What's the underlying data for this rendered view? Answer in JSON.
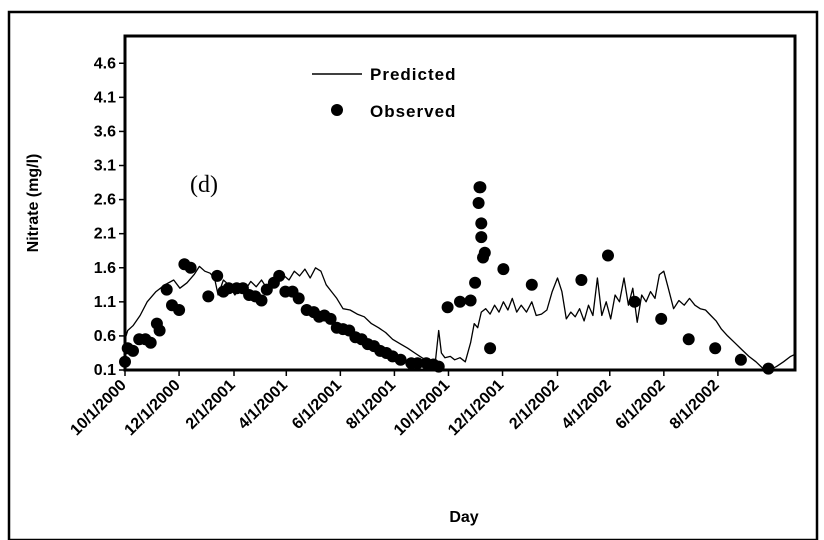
{
  "chart_data": {
    "type": "line",
    "title": "",
    "panel_label": "(d)",
    "xlabel": "Day",
    "ylabel": "Nitrate (mg/l)",
    "ylim": [
      0.1,
      5.0
    ],
    "yticks": [
      0.1,
      0.6,
      1.1,
      1.6,
      2.1,
      2.6,
      3.1,
      3.6,
      4.1,
      4.6
    ],
    "xlim": [
      "2000-10-01",
      "2002-10-27"
    ],
    "xticks": [
      {
        "label": "10/1/2000",
        "date": "2000-10-01"
      },
      {
        "label": "12/1/2000",
        "date": "2000-12-01"
      },
      {
        "label": "2/1/2001",
        "date": "2001-02-01"
      },
      {
        "label": "4/1/2001",
        "date": "2001-04-01"
      },
      {
        "label": "6/1/2001",
        "date": "2001-06-01"
      },
      {
        "label": "8/1/2001",
        "date": "2001-08-01"
      },
      {
        "label": "10/1/2001",
        "date": "2001-10-01"
      },
      {
        "label": "12/1/2001",
        "date": "2001-12-01"
      },
      {
        "label": "2/1/2002",
        "date": "2002-02-01"
      },
      {
        "label": "4/1/2002",
        "date": "2002-04-01"
      },
      {
        "label": "6/1/2002",
        "date": "2002-06-01"
      },
      {
        "label": "8/1/2002",
        "date": "2002-08-01"
      }
    ],
    "legend_position": "top-center",
    "grid": false,
    "series": [
      {
        "name": "Predicted",
        "kind": "line",
        "color": "#000000",
        "points": [
          [
            "2000-10-01",
            0.55
          ],
          [
            "2000-10-04",
            0.68
          ],
          [
            "2000-10-10",
            0.75
          ],
          [
            "2000-10-18",
            0.9
          ],
          [
            "2000-10-26",
            1.1
          ],
          [
            "2000-11-05",
            1.25
          ],
          [
            "2000-11-15",
            1.35
          ],
          [
            "2000-11-25",
            1.42
          ],
          [
            "2000-12-02",
            1.3
          ],
          [
            "2000-12-10",
            1.38
          ],
          [
            "2000-12-18",
            1.5
          ],
          [
            "2000-12-24",
            1.62
          ],
          [
            "2000-12-30",
            1.55
          ],
          [
            "2001-01-05",
            1.52
          ],
          [
            "2001-01-10",
            1.45
          ],
          [
            "2001-01-14",
            1.2
          ],
          [
            "2001-01-20",
            1.42
          ],
          [
            "2001-01-26",
            1.35
          ],
          [
            "2001-02-02",
            1.2
          ],
          [
            "2001-02-08",
            1.32
          ],
          [
            "2001-02-14",
            1.28
          ],
          [
            "2001-02-20",
            1.4
          ],
          [
            "2001-02-26",
            1.32
          ],
          [
            "2001-03-04",
            1.42
          ],
          [
            "2001-03-10",
            1.3
          ],
          [
            "2001-03-16",
            1.45
          ],
          [
            "2001-03-22",
            1.38
          ],
          [
            "2001-03-28",
            1.5
          ],
          [
            "2001-04-04",
            1.42
          ],
          [
            "2001-04-10",
            1.55
          ],
          [
            "2001-04-16",
            1.48
          ],
          [
            "2001-04-22",
            1.58
          ],
          [
            "2001-04-28",
            1.45
          ],
          [
            "2001-05-04",
            1.6
          ],
          [
            "2001-05-10",
            1.55
          ],
          [
            "2001-05-16",
            1.35
          ],
          [
            "2001-05-22",
            1.25
          ],
          [
            "2001-05-28",
            1.15
          ],
          [
            "2001-06-04",
            1.0
          ],
          [
            "2001-06-12",
            0.98
          ],
          [
            "2001-06-20",
            0.92
          ],
          [
            "2001-06-28",
            0.88
          ],
          [
            "2001-07-06",
            0.78
          ],
          [
            "2001-07-14",
            0.72
          ],
          [
            "2001-07-22",
            0.65
          ],
          [
            "2001-07-30",
            0.55
          ],
          [
            "2001-08-08",
            0.48
          ],
          [
            "2001-08-16",
            0.42
          ],
          [
            "2001-08-24",
            0.35
          ],
          [
            "2001-09-01",
            0.28
          ],
          [
            "2001-09-10",
            0.22
          ],
          [
            "2001-09-16",
            0.2
          ],
          [
            "2001-09-20",
            0.68
          ],
          [
            "2001-09-23",
            0.35
          ],
          [
            "2001-09-27",
            0.28
          ],
          [
            "2001-10-03",
            0.3
          ],
          [
            "2001-10-08",
            0.25
          ],
          [
            "2001-10-14",
            0.28
          ],
          [
            "2001-10-20",
            0.22
          ],
          [
            "2001-10-26",
            0.5
          ],
          [
            "2001-10-30",
            0.78
          ],
          [
            "2001-11-03",
            0.72
          ],
          [
            "2001-11-07",
            0.95
          ],
          [
            "2001-11-12",
            1.0
          ],
          [
            "2001-11-17",
            0.92
          ],
          [
            "2001-11-22",
            1.05
          ],
          [
            "2001-11-27",
            0.95
          ],
          [
            "2001-12-02",
            1.1
          ],
          [
            "2001-12-07",
            0.98
          ],
          [
            "2001-12-12",
            1.15
          ],
          [
            "2001-12-17",
            0.95
          ],
          [
            "2001-12-22",
            1.05
          ],
          [
            "2001-12-28",
            0.95
          ],
          [
            "2002-01-03",
            1.1
          ],
          [
            "2002-01-08",
            0.9
          ],
          [
            "2002-01-14",
            0.92
          ],
          [
            "2002-01-20",
            0.98
          ],
          [
            "2002-01-26",
            1.25
          ],
          [
            "2002-02-01",
            1.45
          ],
          [
            "2002-02-06",
            1.25
          ],
          [
            "2002-02-11",
            0.85
          ],
          [
            "2002-02-16",
            0.95
          ],
          [
            "2002-02-21",
            0.88
          ],
          [
            "2002-02-26",
            1.0
          ],
          [
            "2002-03-03",
            0.82
          ],
          [
            "2002-03-08",
            1.05
          ],
          [
            "2002-03-13",
            0.9
          ],
          [
            "2002-03-18",
            1.45
          ],
          [
            "2002-03-23",
            0.9
          ],
          [
            "2002-03-28",
            1.1
          ],
          [
            "2002-04-02",
            0.85
          ],
          [
            "2002-04-07",
            1.2
          ],
          [
            "2002-04-12",
            1.1
          ],
          [
            "2002-04-17",
            1.45
          ],
          [
            "2002-04-22",
            1.05
          ],
          [
            "2002-04-27",
            1.3
          ],
          [
            "2002-05-02",
            0.8
          ],
          [
            "2002-05-07",
            1.2
          ],
          [
            "2002-05-12",
            1.1
          ],
          [
            "2002-05-17",
            1.25
          ],
          [
            "2002-05-22",
            1.15
          ],
          [
            "2002-05-27",
            1.5
          ],
          [
            "2002-06-01",
            1.55
          ],
          [
            "2002-06-06",
            1.3
          ],
          [
            "2002-06-12",
            1.0
          ],
          [
            "2002-06-18",
            1.12
          ],
          [
            "2002-06-24",
            1.05
          ],
          [
            "2002-06-30",
            1.15
          ],
          [
            "2002-07-06",
            1.05
          ],
          [
            "2002-07-12",
            1.0
          ],
          [
            "2002-07-18",
            0.98
          ],
          [
            "2002-07-24",
            0.9
          ],
          [
            "2002-07-30",
            0.82
          ],
          [
            "2002-08-05",
            0.7
          ],
          [
            "2002-08-12",
            0.6
          ],
          [
            "2002-08-20",
            0.5
          ],
          [
            "2002-08-28",
            0.4
          ],
          [
            "2002-09-05",
            0.3
          ],
          [
            "2002-09-13",
            0.22
          ],
          [
            "2002-09-21",
            0.12
          ],
          [
            "2002-09-28",
            0.1
          ],
          [
            "2002-10-06",
            0.15
          ],
          [
            "2002-10-14",
            0.22
          ],
          [
            "2002-10-22",
            0.3
          ],
          [
            "2002-10-27",
            0.33
          ]
        ]
      },
      {
        "name": "Observed",
        "kind": "scatter",
        "color": "#000000",
        "points": [
          [
            "2000-10-01",
            0.22
          ],
          [
            "2000-10-04",
            0.42
          ],
          [
            "2000-10-10",
            0.38
          ],
          [
            "2000-10-17",
            0.55
          ],
          [
            "2000-10-24",
            0.55
          ],
          [
            "2000-10-30",
            0.5
          ],
          [
            "2000-11-06",
            0.78
          ],
          [
            "2000-11-09",
            0.68
          ],
          [
            "2000-11-17",
            1.28
          ],
          [
            "2000-11-23",
            1.05
          ],
          [
            "2000-12-01",
            0.98
          ],
          [
            "2000-12-07",
            1.65
          ],
          [
            "2000-12-14",
            1.6
          ],
          [
            "2001-01-03",
            1.18
          ],
          [
            "2001-01-13",
            1.48
          ],
          [
            "2001-01-20",
            1.25
          ],
          [
            "2001-01-26",
            1.3
          ],
          [
            "2001-02-04",
            1.3
          ],
          [
            "2001-02-11",
            1.3
          ],
          [
            "2001-02-18",
            1.2
          ],
          [
            "2001-02-25",
            1.18
          ],
          [
            "2001-03-04",
            1.12
          ],
          [
            "2001-03-10",
            1.28
          ],
          [
            "2001-03-18",
            1.38
          ],
          [
            "2001-03-24",
            1.48
          ],
          [
            "2001-03-31",
            1.25
          ],
          [
            "2001-04-08",
            1.25
          ],
          [
            "2001-04-15",
            1.15
          ],
          [
            "2001-04-24",
            0.98
          ],
          [
            "2001-05-02",
            0.95
          ],
          [
            "2001-05-08",
            0.88
          ],
          [
            "2001-05-14",
            0.9
          ],
          [
            "2001-05-21",
            0.85
          ],
          [
            "2001-05-28",
            0.72
          ],
          [
            "2001-06-04",
            0.7
          ],
          [
            "2001-06-11",
            0.68
          ],
          [
            "2001-06-18",
            0.58
          ],
          [
            "2001-06-25",
            0.55
          ],
          [
            "2001-07-02",
            0.48
          ],
          [
            "2001-07-09",
            0.45
          ],
          [
            "2001-07-16",
            0.38
          ],
          [
            "2001-07-23",
            0.35
          ],
          [
            "2001-07-30",
            0.3
          ],
          [
            "2001-08-08",
            0.25
          ],
          [
            "2001-08-20",
            0.2
          ],
          [
            "2001-08-27",
            0.2
          ],
          [
            "2001-09-06",
            0.2
          ],
          [
            "2001-09-14",
            0.18
          ],
          [
            "2001-09-20",
            0.15
          ],
          [
            "2001-09-30",
            1.02
          ],
          [
            "2001-10-14",
            1.1
          ],
          [
            "2001-10-26",
            1.12
          ],
          [
            "2001-10-31",
            1.38
          ],
          [
            "2001-11-04",
            2.55
          ],
          [
            "2001-11-05",
            2.78
          ],
          [
            "2001-11-06",
            2.78
          ],
          [
            "2001-11-07",
            2.25
          ],
          [
            "2001-11-07",
            2.05
          ],
          [
            "2001-11-09",
            1.75
          ],
          [
            "2001-11-11",
            1.82
          ],
          [
            "2001-11-17",
            0.42
          ],
          [
            "2001-12-02",
            1.58
          ],
          [
            "2002-01-03",
            1.35
          ],
          [
            "2002-02-28",
            1.42
          ],
          [
            "2002-03-30",
            1.78
          ],
          [
            "2002-04-29",
            1.1
          ],
          [
            "2002-05-29",
            0.85
          ],
          [
            "2002-06-29",
            0.55
          ],
          [
            "2002-07-29",
            0.42
          ],
          [
            "2002-08-27",
            0.25
          ],
          [
            "2002-09-27",
            0.12
          ]
        ]
      }
    ]
  }
}
